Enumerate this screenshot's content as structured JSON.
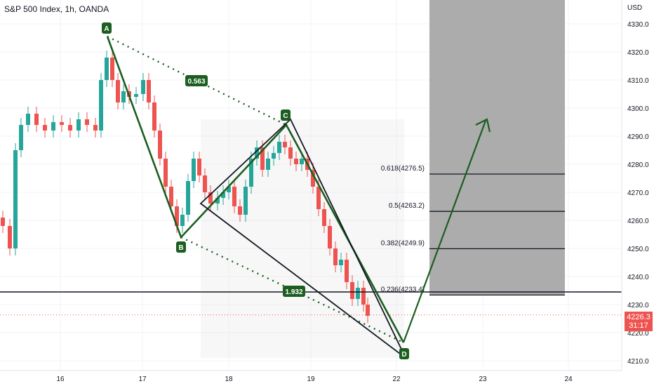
{
  "header": {
    "title": "S&P 500 Index, 1h, OANDA",
    "currency": "USD"
  },
  "colors": {
    "up": "#26a69a",
    "down": "#ef5350",
    "pattern": "#1b5e20",
    "label_bg": "#1b5e20",
    "grid": "#f0f3fa",
    "shade": "#9e9e9e"
  },
  "last_price": {
    "value": "4226.3",
    "countdown": "31:17"
  },
  "chart_data": {
    "type": "candlestick",
    "y_ticks": [
      "4330.0",
      "4320.0",
      "4310.0",
      "4300.0",
      "4290.0",
      "4280.0",
      "4270.0",
      "4260.0",
      "4250.0",
      "4240.0",
      "4230.0",
      "4220.0",
      "4210.0"
    ],
    "ylim": [
      4208,
      4333
    ],
    "x_ticks": [
      "16",
      "17",
      "18",
      "19",
      "22",
      "23",
      "24"
    ],
    "pattern_points": [
      {
        "label": "A",
        "x": 16.6,
        "y": 4326
      },
      {
        "label": "B",
        "x": 17.45,
        "y": 4253
      },
      {
        "label": "C",
        "x": 18.65,
        "y": 4296
      },
      {
        "label": "D",
        "x": 21.1,
        "y": 4212
      }
    ],
    "ratios": [
      {
        "label": "0.563",
        "between": "A-C"
      },
      {
        "label": "1.932",
        "between": "B-D"
      }
    ],
    "fib_levels": [
      {
        "label": "0.618(4276.5)",
        "value": 4276.5
      },
      {
        "label": "0.5(4263.2)",
        "value": 4263.2
      },
      {
        "label": "0.382(4249.9)",
        "value": 4249.9
      },
      {
        "label": "0.236(4233.4)",
        "value": 4233.4
      }
    ],
    "support_level": 4234.5,
    "projection": {
      "from": 4215,
      "to": 4294
    }
  }
}
